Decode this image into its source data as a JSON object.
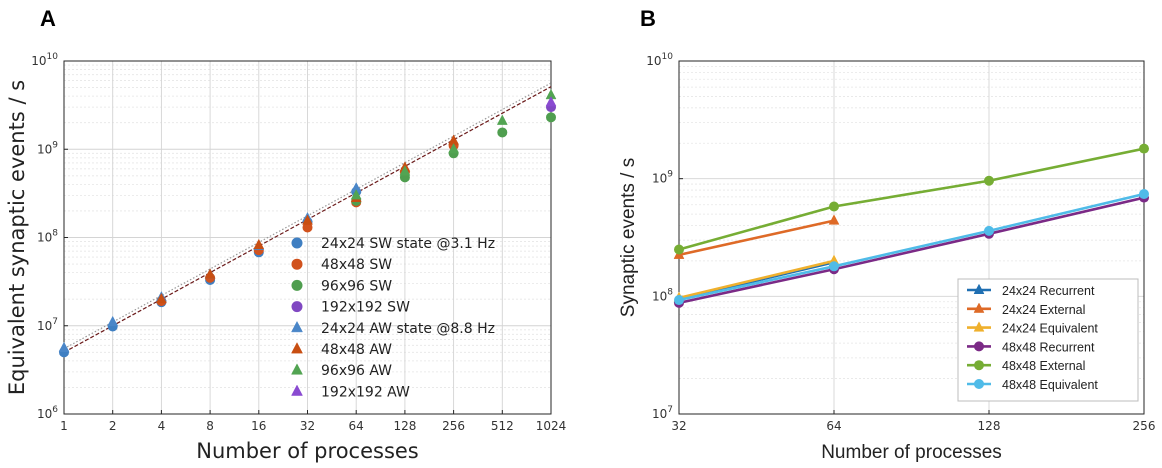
{
  "panels": {
    "a_label": "A",
    "b_label": "B"
  },
  "chart_data": [
    {
      "type": "scatter",
      "panel": "A",
      "xlabel": "Number of processes",
      "ylabel": "Equivalent synaptic events / s",
      "xscale": "log2",
      "yscale": "log10",
      "xlim": [
        1,
        1024
      ],
      "ylim": [
        1000000,
        10000000000
      ],
      "xticks": [
        1,
        2,
        4,
        8,
        16,
        32,
        64,
        128,
        256,
        512,
        1024
      ],
      "xtick_labels": [
        "1",
        "2",
        "4",
        "8",
        "16",
        "32",
        "64",
        "128",
        "256",
        "512",
        "1024"
      ],
      "yticks": [
        1000000,
        10000000,
        100000000,
        1000000000,
        10000000000
      ],
      "ytick_exponents": [
        "6",
        "7",
        "8",
        "9",
        "10"
      ],
      "ytick_base": "10",
      "grid": true,
      "legend_position": "lower-right",
      "series": [
        {
          "name": "24x24 SW state @3.1 Hz",
          "marker": "circle",
          "color": "#3f7fc2",
          "x": [
            1,
            2,
            4,
            8,
            16,
            32,
            64
          ],
          "y": [
            5000000,
            9800000,
            18500000,
            33000000,
            68000000,
            150000000,
            330000000
          ]
        },
        {
          "name": "48x48 SW",
          "marker": "circle",
          "color": "#d1521d",
          "x": [
            4,
            8,
            16,
            32,
            64,
            128,
            256
          ],
          "y": [
            19000000,
            35000000,
            72000000,
            130000000,
            250000000,
            550000000,
            1100000000
          ]
        },
        {
          "name": "96x96 SW",
          "marker": "circle",
          "color": "#4f9e4f",
          "x": [
            64,
            128,
            256,
            512,
            1024
          ],
          "y": [
            260000000,
            480000000,
            900000000,
            1550000000,
            2300000000
          ]
        },
        {
          "name": "192x192 SW",
          "marker": "circle",
          "color": "#8048c2",
          "x": [
            1024
          ],
          "y": [
            3000000000
          ]
        },
        {
          "name": "24x24 AW state @8.8 Hz",
          "marker": "triangle",
          "color": "#4a86c8",
          "x": [
            1,
            2,
            4,
            8,
            16,
            32,
            64
          ],
          "y": [
            5600000,
            11000000,
            21000000,
            38000000,
            80000000,
            165000000,
            360000000
          ]
        },
        {
          "name": "48x48 AW",
          "marker": "triangle",
          "color": "#c84e12",
          "x": [
            4,
            8,
            16,
            32,
            64,
            128,
            256
          ],
          "y": [
            20000000,
            38000000,
            82000000,
            155000000,
            280000000,
            620000000,
            1250000000
          ]
        },
        {
          "name": "96x96 AW",
          "marker": "triangle",
          "color": "#52a452",
          "x": [
            64,
            128,
            256,
            512,
            1024
          ],
          "y": [
            300000000,
            560000000,
            1000000000,
            2100000000,
            4100000000
          ]
        },
        {
          "name": "192x192 AW",
          "marker": "triangle",
          "color": "#8a4bd1",
          "x": [
            1024
          ],
          "y": [
            3400000000
          ]
        }
      ],
      "reference_lines": [
        {
          "color": "#6b1a1a",
          "style": "dashed",
          "x": [
            1,
            1024
          ],
          "y": [
            5000000,
            5120000000
          ]
        },
        {
          "color": "#999999",
          "style": "dotted",
          "x": [
            1,
            1024
          ],
          "y": [
            5500000,
            5630000000
          ]
        }
      ]
    },
    {
      "type": "line",
      "panel": "B",
      "xlabel": "Number of processes",
      "ylabel": "Synaptic events / s",
      "xscale": "log2",
      "yscale": "log10",
      "xlim": [
        32,
        256
      ],
      "ylim": [
        10000000,
        10000000000
      ],
      "xticks": [
        32,
        64,
        128,
        256
      ],
      "xtick_labels": [
        "32",
        "64",
        "128",
        "256"
      ],
      "yticks": [
        10000000,
        100000000,
        1000000000,
        10000000000
      ],
      "ytick_exponents": [
        "7",
        "8",
        "9",
        "10"
      ],
      "ytick_base": "10",
      "grid": true,
      "legend_position": "lower-right",
      "series": [
        {
          "name": "24x24 Recurrent",
          "marker": "triangle",
          "color": "#1f6fb2",
          "x": [
            32,
            64
          ],
          "y": [
            95000000,
            195000000
          ]
        },
        {
          "name": "24x24 External",
          "marker": "triangle",
          "color": "#de6a27",
          "x": [
            32,
            64
          ],
          "y": [
            225000000,
            440000000
          ]
        },
        {
          "name": "24x24 Equivalent",
          "marker": "triangle",
          "color": "#efb02d",
          "x": [
            32,
            64
          ],
          "y": [
            97000000,
            200000000
          ]
        },
        {
          "name": "48x48 Recurrent",
          "marker": "circle",
          "color": "#7b2a86",
          "x": [
            32,
            64,
            128,
            256
          ],
          "y": [
            88000000,
            170000000,
            340000000,
            690000000
          ]
        },
        {
          "name": "48x48 External",
          "marker": "circle",
          "color": "#76ad34",
          "x": [
            32,
            64,
            128,
            256
          ],
          "y": [
            250000000,
            580000000,
            960000000,
            1800000000
          ]
        },
        {
          "name": "48x48 Equivalent",
          "marker": "circle",
          "color": "#4fbbe8",
          "x": [
            32,
            64,
            128,
            256
          ],
          "y": [
            93000000,
            180000000,
            360000000,
            740000000
          ]
        }
      ]
    }
  ]
}
